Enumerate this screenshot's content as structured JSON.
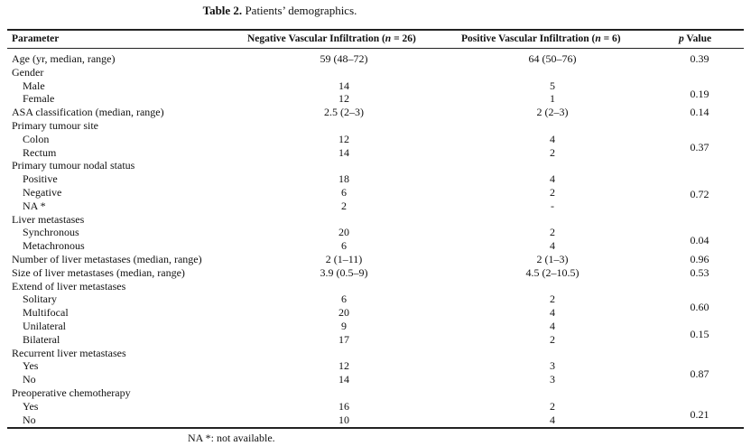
{
  "caption": {
    "label": "Table 2.",
    "text": "Patients’ demographics."
  },
  "header": {
    "parameter": "Parameter",
    "neg_prefix": "Negative Vascular Infiltration (",
    "neg_n": "n",
    "neg_suffix": " = 26)",
    "pos_prefix": "Positive Vascular Infiltration (",
    "pos_n": "n",
    "pos_suffix": " = 6)",
    "p": "p",
    "p_suffix": " Value"
  },
  "rows": [
    {
      "label": "Age (yr, median, range)",
      "neg": "59 (48–72)",
      "pos": "64 (50–76)",
      "p": "0.39",
      "sub": false
    },
    {
      "label": "Gender",
      "neg": "",
      "pos": "",
      "p": "",
      "sub": false
    },
    {
      "label": "Male",
      "neg": "14",
      "pos": "5",
      "p": "",
      "sub": true
    },
    {
      "label": "Female",
      "neg": "12",
      "pos": "1",
      "p": "",
      "sub": true
    },
    {
      "label": "ASA classification (median, range)",
      "neg": "2.5 (2–3)",
      "pos": "2 (2–3)",
      "p": "0.14",
      "sub": false
    },
    {
      "label": "Primary tumour site",
      "neg": "",
      "pos": "",
      "p": "",
      "sub": false
    },
    {
      "label": "Colon",
      "neg": "12",
      "pos": "4",
      "p": "",
      "sub": true
    },
    {
      "label": "Rectum",
      "neg": "14",
      "pos": "2",
      "p": "",
      "sub": true
    },
    {
      "label": "Primary tumour nodal status",
      "neg": "",
      "pos": "",
      "p": "",
      "sub": false
    },
    {
      "label": "Positive",
      "neg": "18",
      "pos": "4",
      "p": "",
      "sub": true
    },
    {
      "label": "Negative",
      "neg": "6",
      "pos": "2",
      "p": "",
      "sub": true
    },
    {
      "label": "NA *",
      "neg": "2",
      "pos": "-",
      "p": "",
      "sub": true
    },
    {
      "label": "Liver metastases",
      "neg": "",
      "pos": "",
      "p": "",
      "sub": false
    },
    {
      "label": "Synchronous",
      "neg": "20",
      "pos": "2",
      "p": "",
      "sub": true
    },
    {
      "label": "Metachronous",
      "neg": "6",
      "pos": "4",
      "p": "",
      "sub": true
    },
    {
      "label": "Number of liver metastases (median, range)",
      "neg": "2 (1–11)",
      "pos": "2 (1–3)",
      "p": "0.96",
      "sub": false
    },
    {
      "label": "Size of liver metastases (median, range)",
      "neg": "3.9 (0.5–9)",
      "pos": "4.5 (2–10.5)",
      "p": "0.53",
      "sub": false
    },
    {
      "label": "Extend of liver metastases",
      "neg": "",
      "pos": "",
      "p": "",
      "sub": false
    },
    {
      "label": "Solitary",
      "neg": "6",
      "pos": "2",
      "p": "",
      "sub": true
    },
    {
      "label": "Multifocal",
      "neg": "20",
      "pos": "4",
      "p": "",
      "sub": true
    },
    {
      "label": "Unilateral",
      "neg": "9",
      "pos": "4",
      "p": "",
      "sub": true
    },
    {
      "label": "Bilateral",
      "neg": "17",
      "pos": "2",
      "p": "",
      "sub": true
    },
    {
      "label": "Recurrent liver metastases",
      "neg": "",
      "pos": "",
      "p": "",
      "sub": false
    },
    {
      "label": "Yes",
      "neg": "12",
      "pos": "3",
      "p": "",
      "sub": true
    },
    {
      "label": "No",
      "neg": "14",
      "pos": "3",
      "p": "",
      "sub": true
    },
    {
      "label": "Preoperative chemotherapy",
      "neg": "",
      "pos": "",
      "p": "",
      "sub": false
    },
    {
      "label": "Yes",
      "neg": "16",
      "pos": "2",
      "p": "",
      "sub": true
    },
    {
      "label": "No",
      "neg": "10",
      "pos": "4",
      "p": "",
      "sub": true
    }
  ],
  "group_p": [
    {
      "value": "0.19"
    },
    {
      "value": "0.37"
    },
    {
      "value": "0.72"
    },
    {
      "value": "0.04"
    },
    {
      "value": "0.60"
    },
    {
      "value": "0.15"
    },
    {
      "value": "0.87"
    },
    {
      "value": "0.21"
    }
  ],
  "footnote": "NA *: not available."
}
